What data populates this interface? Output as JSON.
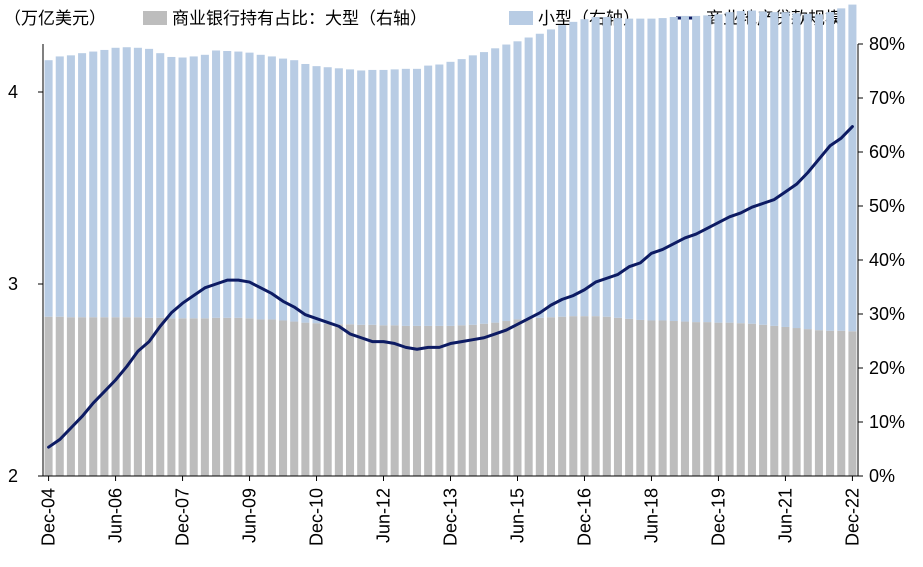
{
  "chart_data": {
    "type": "bar",
    "subtype": "stacked-bar-with-line",
    "title": "",
    "left_axis_unit_label": "（万亿美元）",
    "legend": [
      {
        "key": "large",
        "label": "商业银行持有占比：大型（右轴）",
        "color": "#bdbdbd"
      },
      {
        "key": "small",
        "label": "小型（右轴）",
        "color": "#b8cce4"
      },
      {
        "key": "loans",
        "label": "商业地产贷款规模",
        "color": "#0d1b63"
      }
    ],
    "x_tick_labels": [
      "Dec-04",
      "Jun-06",
      "Dec-07",
      "Jun-09",
      "Dec-10",
      "Jun-12",
      "Dec-13",
      "Jun-15",
      "Dec-16",
      "Jun-18",
      "Dec-19",
      "Jun-21",
      "Dec-22"
    ],
    "left_axis": {
      "min": 2,
      "max": 4.25,
      "ticks": [
        2,
        3,
        4
      ],
      "tick_labels": [
        "2",
        "3",
        "4"
      ]
    },
    "right_axis": {
      "min": 0,
      "max": 80,
      "ticks": [
        0,
        10,
        20,
        30,
        40,
        50,
        60,
        70,
        80
      ],
      "tick_labels": [
        "0%",
        "10%",
        "20%",
        "30%",
        "40%",
        "50%",
        "60%",
        "70%",
        "80%"
      ]
    },
    "x": [
      "Dec-04",
      "Mar-05",
      "Jun-05",
      "Sep-05",
      "Dec-05",
      "Mar-06",
      "Jun-06",
      "Sep-06",
      "Dec-06",
      "Mar-07",
      "Jun-07",
      "Sep-07",
      "Dec-07",
      "Mar-08",
      "Jun-08",
      "Sep-08",
      "Dec-08",
      "Mar-09",
      "Jun-09",
      "Sep-09",
      "Dec-09",
      "Mar-10",
      "Jun-10",
      "Sep-10",
      "Dec-10",
      "Mar-11",
      "Jun-11",
      "Sep-11",
      "Dec-11",
      "Mar-12",
      "Jun-12",
      "Sep-12",
      "Dec-12",
      "Mar-13",
      "Jun-13",
      "Sep-13",
      "Dec-13",
      "Mar-14",
      "Jun-14",
      "Sep-14",
      "Dec-14",
      "Mar-15",
      "Jun-15",
      "Sep-15",
      "Dec-15",
      "Mar-16",
      "Jun-16",
      "Sep-16",
      "Dec-16",
      "Mar-17",
      "Jun-17",
      "Sep-17",
      "Dec-17",
      "Mar-18",
      "Jun-18",
      "Sep-18",
      "Dec-18",
      "Mar-19",
      "Jun-19",
      "Sep-19",
      "Dec-19",
      "Mar-20",
      "Jun-20",
      "Sep-20",
      "Dec-20",
      "Mar-21",
      "Jun-21",
      "Sep-21",
      "Dec-21",
      "Mar-22",
      "Jun-22",
      "Sep-22",
      "Dec-22"
    ],
    "series": [
      {
        "name": "大型",
        "axis": "right",
        "type": "bar",
        "values": [
          29.5,
          29.5,
          29.4,
          29.4,
          29.4,
          29.4,
          29.4,
          29.4,
          29.4,
          29.3,
          29.3,
          29.2,
          29.2,
          29.2,
          29.2,
          29.3,
          29.3,
          29.3,
          29.2,
          29.0,
          29.0,
          28.8,
          28.6,
          28.4,
          28.3,
          28.2,
          28.1,
          28.1,
          28.0,
          28.0,
          27.9,
          27.9,
          27.8,
          27.8,
          27.8,
          27.8,
          27.8,
          27.9,
          28.0,
          28.2,
          28.4,
          28.7,
          29.0,
          29.2,
          29.3,
          29.4,
          29.5,
          29.6,
          29.6,
          29.6,
          29.5,
          29.3,
          29.1,
          28.9,
          28.8,
          28.8,
          28.7,
          28.6,
          28.5,
          28.5,
          28.4,
          28.4,
          28.3,
          28.2,
          28.0,
          27.8,
          27.6,
          27.4,
          27.2,
          27.0,
          26.9,
          26.9,
          26.8
        ]
      },
      {
        "name": "小型",
        "axis": "right",
        "type": "bar",
        "values": [
          47.5,
          48.2,
          48.5,
          48.9,
          49.2,
          49.5,
          49.9,
          50.0,
          49.9,
          49.8,
          49.0,
          48.4,
          48.3,
          48.5,
          48.8,
          49.5,
          49.4,
          49.3,
          49.2,
          49.0,
          48.7,
          48.5,
          48.4,
          47.9,
          47.6,
          47.5,
          47.4,
          47.2,
          47.1,
          47.2,
          47.3,
          47.4,
          47.6,
          47.6,
          48.2,
          48.4,
          48.9,
          49.3,
          49.9,
          50.3,
          50.8,
          51.2,
          51.5,
          52.0,
          52.6,
          53.3,
          54.0,
          54.5,
          55.0,
          55.4,
          55.5,
          55.5,
          55.6,
          55.8,
          55.9,
          56.0,
          56.3,
          56.6,
          56.7,
          56.8,
          57.1,
          57.5,
          57.8,
          58.0,
          58.0,
          58.1,
          58.3,
          58.3,
          58.4,
          58.5,
          59.0,
          59.7,
          60.5
        ]
      },
      {
        "name": "商业地产贷款规模",
        "axis": "left",
        "type": "line",
        "values": [
          2.15,
          2.19,
          2.25,
          2.31,
          2.38,
          2.44,
          2.5,
          2.57,
          2.65,
          2.7,
          2.78,
          2.85,
          2.9,
          2.94,
          2.98,
          3.0,
          3.02,
          3.02,
          3.01,
          2.98,
          2.95,
          2.91,
          2.88,
          2.84,
          2.82,
          2.8,
          2.78,
          2.74,
          2.72,
          2.7,
          2.7,
          2.69,
          2.67,
          2.66,
          2.67,
          2.67,
          2.69,
          2.7,
          2.71,
          2.72,
          2.74,
          2.76,
          2.79,
          2.82,
          2.85,
          2.89,
          2.92,
          2.94,
          2.97,
          3.01,
          3.03,
          3.05,
          3.09,
          3.11,
          3.16,
          3.18,
          3.21,
          3.24,
          3.26,
          3.29,
          3.32,
          3.35,
          3.37,
          3.4,
          3.42,
          3.44,
          3.48,
          3.52,
          3.58,
          3.65,
          3.72,
          3.76,
          3.82
        ]
      }
    ]
  }
}
